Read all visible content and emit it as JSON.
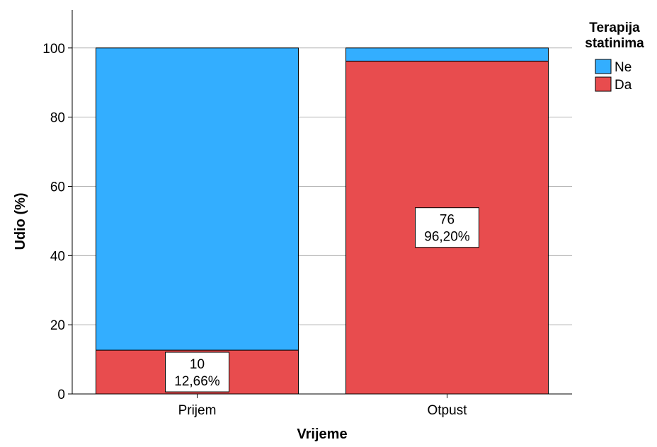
{
  "chart_data": {
    "type": "bar",
    "stacked": true,
    "categories": [
      "Prijem",
      "Otpust"
    ],
    "series": [
      {
        "name": "Da",
        "values": [
          12.66,
          96.2
        ],
        "counts": [
          "10",
          "76"
        ],
        "percent_labels": [
          "12,66%",
          "96,20%"
        ],
        "color": "#e84c4e"
      },
      {
        "name": "Ne",
        "values": [
          87.34,
          3.8
        ],
        "color": "#33aeff"
      }
    ],
    "xlabel": "Vrijeme",
    "ylabel": "Udio (%)",
    "ylim": [
      0,
      111
    ],
    "yticks": [
      "0",
      "20",
      "40",
      "60",
      "80",
      "100"
    ],
    "grid": true,
    "legend": {
      "title_line1": "Terapija",
      "title_line2": "statinima",
      "placement": "top-right",
      "order": [
        "Ne",
        "Da"
      ]
    }
  }
}
